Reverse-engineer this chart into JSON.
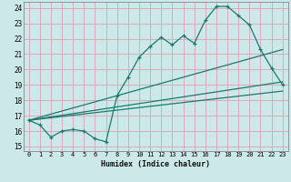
{
  "xlabel": "Humidex (Indice chaleur)",
  "bg_color": "#cce8e8",
  "grid_color": "#dbaabb",
  "line_color": "#1a7a6e",
  "xlim": [
    -0.5,
    23.5
  ],
  "ylim": [
    14.7,
    24.4
  ],
  "xticks": [
    0,
    1,
    2,
    3,
    4,
    5,
    6,
    7,
    8,
    9,
    10,
    11,
    12,
    13,
    14,
    15,
    16,
    17,
    18,
    19,
    20,
    21,
    22,
    23
  ],
  "yticks": [
    15,
    16,
    17,
    18,
    19,
    20,
    21,
    22,
    23,
    24
  ],
  "line1_x": [
    0,
    1,
    2,
    3,
    4,
    5,
    6,
    7,
    8,
    9,
    10,
    11,
    12,
    13,
    14,
    15,
    16,
    17,
    18,
    19,
    20,
    21,
    22,
    23
  ],
  "line1_y": [
    16.7,
    16.4,
    15.6,
    16.0,
    16.1,
    16.0,
    15.5,
    15.3,
    18.3,
    19.5,
    20.8,
    21.5,
    22.1,
    21.6,
    22.2,
    21.7,
    23.2,
    24.1,
    24.1,
    23.5,
    22.9,
    21.3,
    20.1,
    19.0
  ],
  "line2_x": [
    0,
    23
  ],
  "line2_y": [
    16.7,
    21.3
  ],
  "line3_x": [
    0,
    23
  ],
  "line3_y": [
    16.7,
    19.2
  ],
  "line4_x": [
    0,
    23
  ],
  "line4_y": [
    16.7,
    18.6
  ]
}
